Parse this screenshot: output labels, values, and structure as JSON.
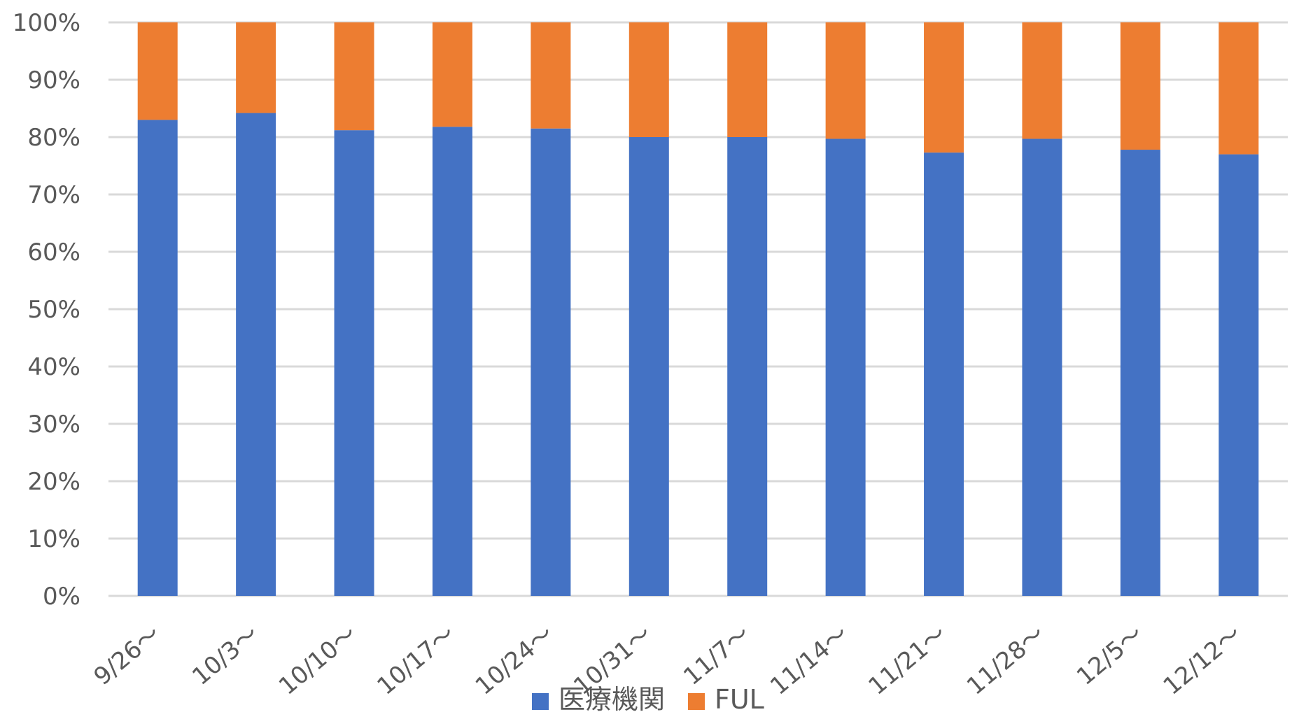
{
  "chart_data": {
    "type": "bar",
    "stacked": true,
    "categories": [
      "9/26～",
      "10/3～",
      "10/10～",
      "10/17～",
      "10/24～",
      "10/31～",
      "11/7～",
      "11/14～",
      "11/21～",
      "11/28～",
      "12/5～",
      "12/12～"
    ],
    "series": [
      {
        "name": "医療機関",
        "color": "#4472c4",
        "values": [
          83.0,
          84.2,
          81.2,
          81.8,
          81.5,
          80.0,
          80.0,
          79.7,
          77.3,
          79.7,
          77.8,
          77.0
        ]
      },
      {
        "name": "FUL",
        "color": "#ed7d31",
        "values": [
          17.0,
          15.8,
          18.8,
          18.2,
          18.5,
          20.0,
          20.0,
          20.3,
          22.7,
          20.3,
          22.2,
          23.0
        ]
      }
    ],
    "ylim": [
      0,
      100
    ],
    "yticks": [
      "0%",
      "10%",
      "20%",
      "30%",
      "40%",
      "50%",
      "60%",
      "70%",
      "80%",
      "90%",
      "100%"
    ],
    "grid": true,
    "legend": "bottom"
  }
}
